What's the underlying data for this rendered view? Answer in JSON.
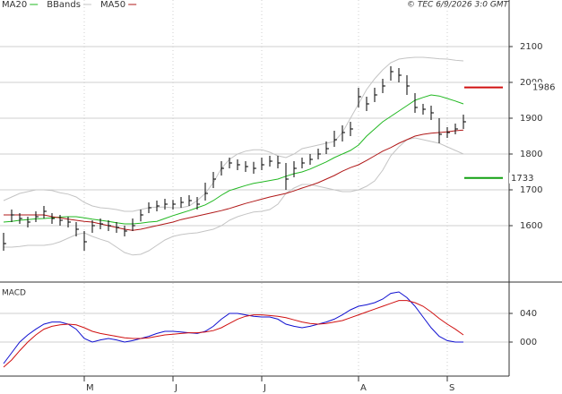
{
  "chart_data": [
    {
      "type": "ohlc",
      "source": "© TEC 6/9/2026 3:0 GMT",
      "categories": [
        null,
        null,
        null,
        null,
        null,
        null,
        null,
        null,
        null,
        null,
        "M",
        null,
        null,
        null,
        null,
        null,
        null,
        null,
        null,
        null,
        null,
        "J",
        null,
        null,
        null,
        null,
        null,
        null,
        null,
        null,
        null,
        null,
        "J",
        null,
        null,
        null,
        null,
        null,
        null,
        null,
        null,
        null,
        null,
        null,
        "A",
        null,
        null,
        null,
        null,
        null,
        null,
        null,
        null,
        null,
        null,
        "S",
        null,
        null
      ],
      "close": [
        1550,
        1630,
        1620,
        1610,
        1625,
        1640,
        1620,
        1615,
        1610,
        1590,
        1555,
        1600,
        1605,
        1600,
        1595,
        1585,
        1600,
        1630,
        1650,
        1655,
        1660,
        1660,
        1665,
        1670,
        1660,
        1690,
        1730,
        1760,
        1775,
        1770,
        1765,
        1760,
        1770,
        1780,
        1775,
        1730,
        1760,
        1775,
        1785,
        1800,
        1815,
        1840,
        1860,
        1870,
        1960,
        1940,
        1965,
        1990,
        2030,
        2020,
        1990,
        1930,
        1925,
        1915,
        1855,
        1860,
        1870,
        1890
      ],
      "high": [
        1580,
        1645,
        1635,
        1625,
        1640,
        1655,
        1635,
        1630,
        1625,
        1610,
        1585,
        1615,
        1620,
        1615,
        1610,
        1600,
        1620,
        1645,
        1665,
        1670,
        1675,
        1672,
        1680,
        1685,
        1680,
        1720,
        1750,
        1780,
        1790,
        1785,
        1780,
        1778,
        1790,
        1795,
        1795,
        1775,
        1780,
        1790,
        1800,
        1815,
        1835,
        1865,
        1880,
        1890,
        1985,
        1960,
        1985,
        2010,
        2045,
        2040,
        2020,
        1970,
        1940,
        1935,
        1900,
        1875,
        1885,
        1910
      ],
      "low": [
        1530,
        1610,
        1605,
        1595,
        1610,
        1620,
        1605,
        1600,
        1595,
        1570,
        1530,
        1580,
        1590,
        1585,
        1580,
        1570,
        1585,
        1612,
        1635,
        1640,
        1645,
        1645,
        1650,
        1655,
        1645,
        1670,
        1705,
        1740,
        1760,
        1755,
        1750,
        1745,
        1755,
        1765,
        1760,
        1700,
        1735,
        1760,
        1770,
        1785,
        1800,
        1820,
        1835,
        1850,
        1930,
        1920,
        1945,
        1970,
        2005,
        2000,
        1965,
        1915,
        1910,
        1895,
        1830,
        1845,
        1855,
        1870
      ],
      "series": [
        {
          "name": "MA20",
          "color": "#22b822",
          "values": [
            1610,
            1612,
            1615,
            1617,
            1619,
            1620,
            1622,
            1624,
            1625,
            1625,
            1622,
            1618,
            1615,
            1612,
            1608,
            1605,
            1605,
            1607,
            1610,
            1612,
            1620,
            1628,
            1635,
            1642,
            1650,
            1658,
            1670,
            1685,
            1698,
            1705,
            1712,
            1718,
            1722,
            1726,
            1730,
            1738,
            1745,
            1750,
            1758,
            1768,
            1778,
            1790,
            1800,
            1810,
            1825,
            1850,
            1870,
            1890,
            1905,
            1920,
            1935,
            1950,
            1958,
            1965,
            1962,
            1955,
            1948,
            1940
          ]
        },
        {
          "name": "BBands",
          "color": "#c4c4c4",
          "upper": [
            1670,
            1680,
            1690,
            1695,
            1700,
            1700,
            1698,
            1692,
            1688,
            1680,
            1665,
            1655,
            1650,
            1648,
            1645,
            1640,
            1640,
            1645,
            1650,
            1652,
            1652,
            1650,
            1650,
            1655,
            1670,
            1690,
            1720,
            1760,
            1785,
            1800,
            1808,
            1812,
            1812,
            1805,
            1795,
            1790,
            1800,
            1815,
            1820,
            1825,
            1830,
            1835,
            1860,
            1900,
            1940,
            1980,
            2010,
            2035,
            2055,
            2065,
            2068,
            2070,
            2070,
            2068,
            2066,
            2065,
            2062,
            2060
          ],
          "lower": [
            1540,
            1540,
            1542,
            1545,
            1545,
            1545,
            1548,
            1555,
            1565,
            1575,
            1580,
            1570,
            1562,
            1555,
            1540,
            1525,
            1518,
            1520,
            1530,
            1545,
            1560,
            1570,
            1575,
            1578,
            1580,
            1585,
            1590,
            1600,
            1615,
            1625,
            1632,
            1638,
            1640,
            1645,
            1660,
            1690,
            1705,
            1715,
            1715,
            1710,
            1705,
            1700,
            1695,
            1695,
            1700,
            1710,
            1725,
            1755,
            1795,
            1820,
            1840,
            1845,
            1840,
            1835,
            1830,
            1820,
            1810,
            1800
          ]
        },
        {
          "name": "MA50",
          "color": "#b01818",
          "values": [
            1630,
            1630,
            1630,
            1630,
            1630,
            1630,
            1625,
            1622,
            1618,
            1615,
            1612,
            1610,
            1605,
            1600,
            1595,
            1590,
            1587,
            1590,
            1595,
            1600,
            1605,
            1610,
            1617,
            1622,
            1627,
            1632,
            1637,
            1642,
            1648,
            1655,
            1662,
            1668,
            1674,
            1680,
            1685,
            1690,
            1697,
            1705,
            1712,
            1720,
            1730,
            1740,
            1752,
            1762,
            1770,
            1782,
            1795,
            1808,
            1818,
            1830,
            1840,
            1850,
            1855,
            1858,
            1860,
            1862,
            1865,
            1867
          ]
        }
      ],
      "levels": [
        {
          "value": 1986,
          "color": "#d01010"
        },
        {
          "value": 1733,
          "color": "#10a010"
        }
      ],
      "ylim": [
        1442.5,
        2230
      ],
      "yticks": [
        1600,
        1700,
        1800,
        1900,
        2000,
        2100
      ],
      "grid": true
    },
    {
      "type": "line",
      "title": "MACD",
      "series": [
        {
          "color": "#1010d0",
          "values": [
            -30,
            -15,
            0,
            10,
            18,
            25,
            28,
            28,
            25,
            18,
            5,
            0,
            3,
            5,
            3,
            0,
            2,
            5,
            8,
            12,
            15,
            15,
            14,
            13,
            12,
            15,
            22,
            32,
            40,
            40,
            38,
            36,
            35,
            35,
            32,
            25,
            22,
            20,
            22,
            25,
            28,
            32,
            38,
            45,
            50,
            52,
            55,
            60,
            68,
            70,
            62,
            50,
            35,
            20,
            8,
            2,
            0,
            0
          ]
        },
        {
          "color": "#d01010",
          "values": [
            -35,
            -25,
            -12,
            0,
            10,
            18,
            22,
            24,
            25,
            24,
            20,
            15,
            12,
            10,
            8,
            6,
            5,
            5,
            6,
            8,
            10,
            11,
            12,
            13,
            13,
            14,
            16,
            20,
            26,
            32,
            36,
            38,
            38,
            37,
            36,
            34,
            31,
            28,
            26,
            25,
            26,
            28,
            30,
            34,
            38,
            42,
            46,
            50,
            54,
            58,
            58,
            55,
            50,
            42,
            33,
            25,
            18,
            10
          ]
        }
      ],
      "ylim": [
        -47.5,
        83.75
      ],
      "yticks": [
        {
          "value": 0,
          "label": "000"
        },
        {
          "value": 40,
          "label": "040"
        }
      ],
      "grid": true
    }
  ]
}
